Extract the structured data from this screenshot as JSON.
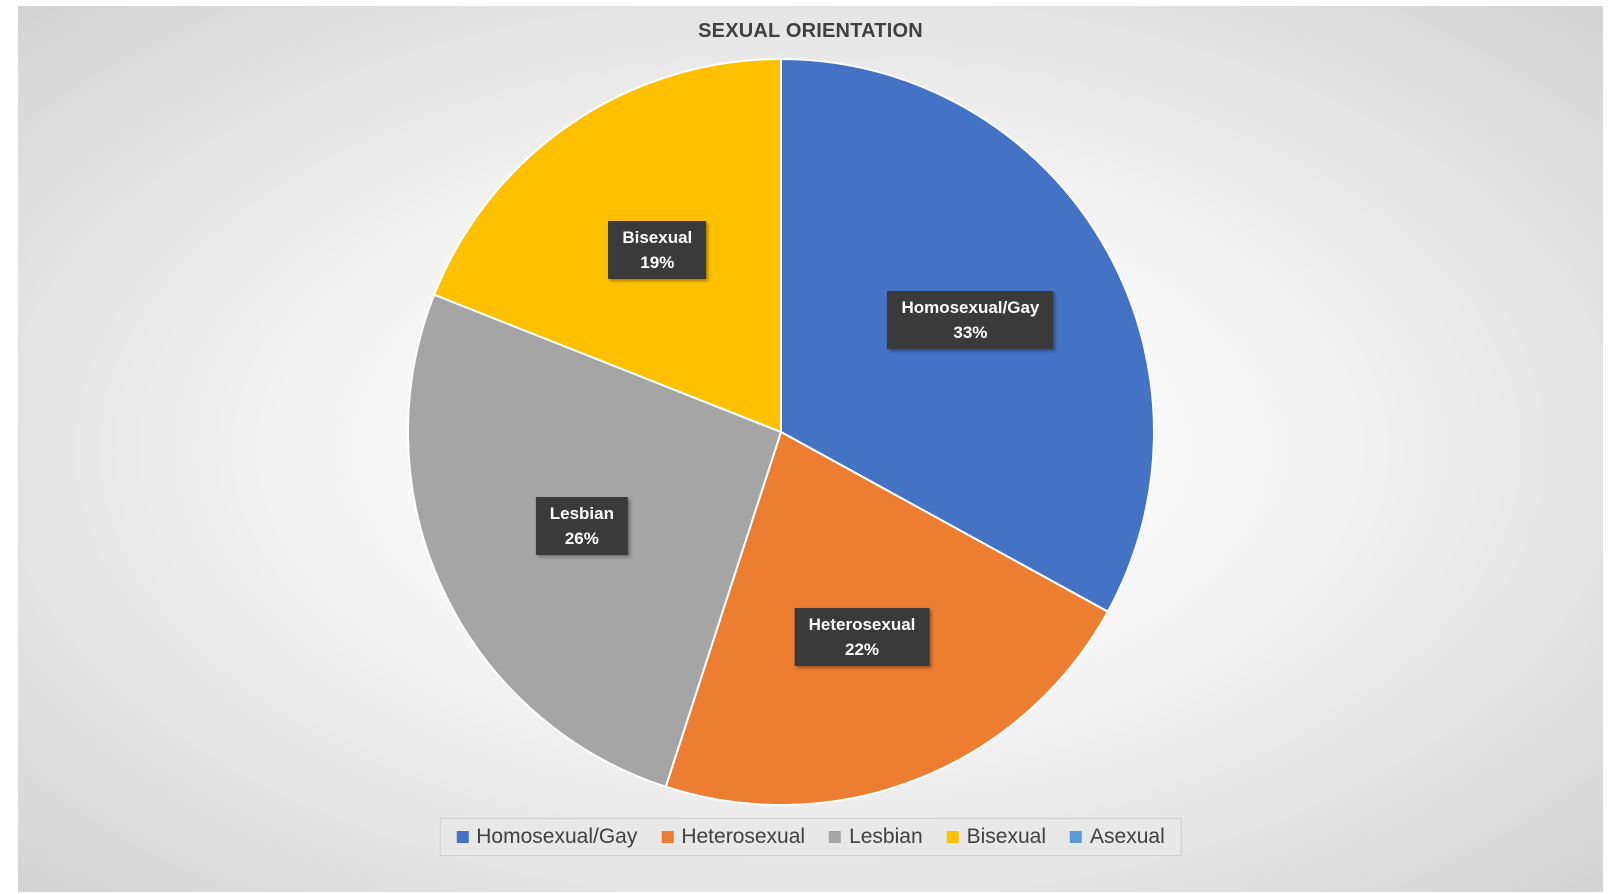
{
  "chart_data": {
    "type": "pie",
    "title": "SEXUAL ORIENTATION",
    "categories": [
      "Homosexual/Gay",
      "Heterosexual",
      "Lesbian",
      "Bisexual",
      "Asexual"
    ],
    "values": [
      33,
      22,
      26,
      19,
      0
    ],
    "value_unit": "%",
    "data_labels": [
      {
        "category": "Homosexual/Gay",
        "value": "33%"
      },
      {
        "category": "Heterosexual",
        "value": "22%"
      },
      {
        "category": "Lesbian",
        "value": "26%"
      },
      {
        "category": "Bisexual",
        "value": "19%"
      }
    ],
    "colors": [
      "#4472C4",
      "#ED7D31",
      "#A5A5A5",
      "#FFC000",
      "#5B9BD5"
    ],
    "legend_position": "bottom",
    "legend": [
      "Homosexual/Gay",
      "Heterosexual",
      "Lesbian",
      "Bisexual",
      "Asexual"
    ]
  }
}
